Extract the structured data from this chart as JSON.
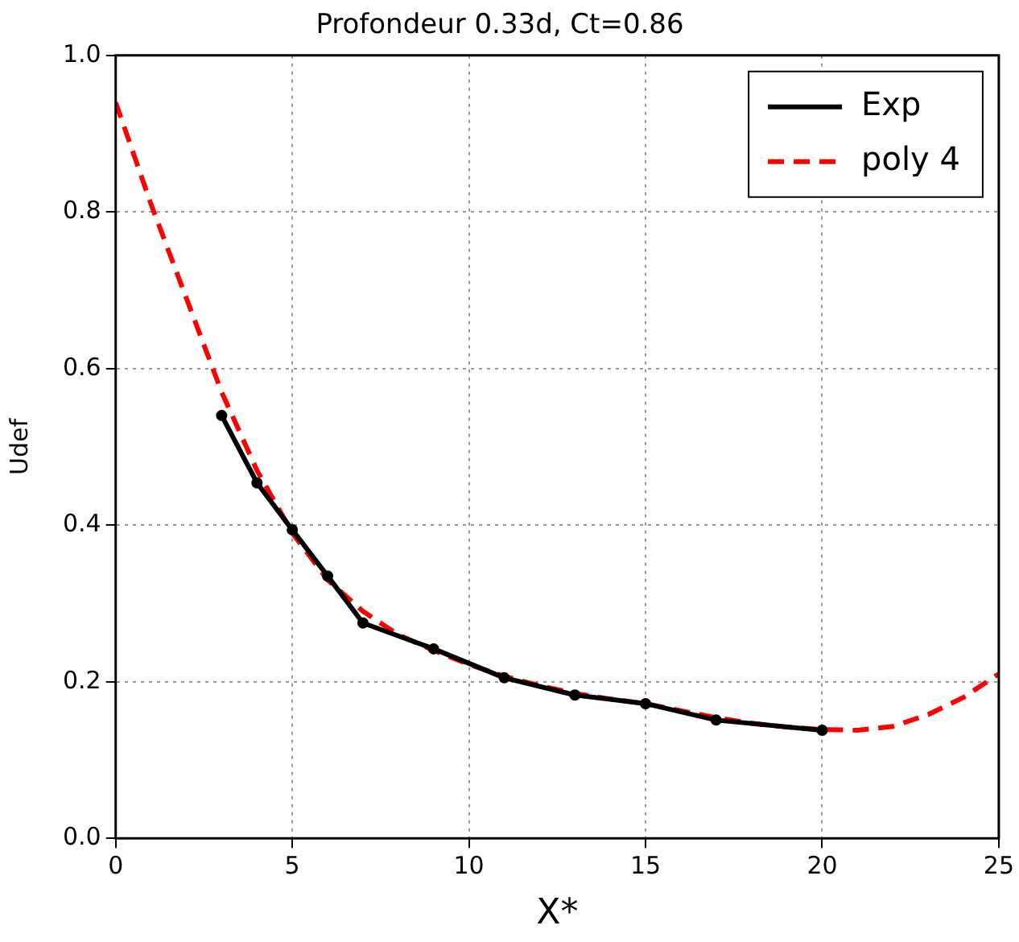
{
  "chart_data": {
    "type": "line",
    "title": "Profondeur 0.33d, Ct=0.86",
    "xlabel": "X*",
    "ylabel": "Udef",
    "xlim": [
      0,
      25
    ],
    "xticks": [
      0,
      5,
      10,
      15,
      20,
      25
    ],
    "ylim": [
      0,
      1
    ],
    "yticks": [
      {
        "value": 0,
        "label": "0.0"
      },
      0.2,
      0.4,
      0.6,
      0.8,
      {
        "value": 1,
        "label": "1.0"
      }
    ],
    "grid": true,
    "legend": "top right",
    "series": [
      {
        "name": "Exp",
        "color": "#000000",
        "marker": "circle",
        "line_style": "solid",
        "x": [
          3,
          4,
          5,
          6,
          7,
          9,
          11,
          13,
          15,
          17,
          20
        ],
        "values": [
          0.54,
          0.454,
          0.394,
          0.335,
          0.275,
          0.242,
          0.205,
          0.183,
          0.172,
          0.151,
          0.138
        ]
      },
      {
        "name": "poly 4",
        "color": "#ff0000",
        "marker": "none",
        "line_style": "dashed",
        "x": [
          0,
          1,
          2,
          3,
          4,
          5,
          6,
          7,
          8,
          9,
          10,
          11,
          12,
          13,
          14,
          15,
          16,
          17,
          18,
          19,
          20,
          21,
          22,
          23,
          24,
          25
        ],
        "values": [
          0.94,
          0.81,
          0.69,
          0.57,
          0.47,
          0.39,
          0.33,
          0.29,
          0.26,
          0.24,
          0.222,
          0.207,
          0.195,
          0.185,
          0.178,
          0.172,
          0.163,
          0.154,
          0.147,
          0.142,
          0.139,
          0.138,
          0.143,
          0.158,
          0.18,
          0.21
        ]
      }
    ]
  }
}
